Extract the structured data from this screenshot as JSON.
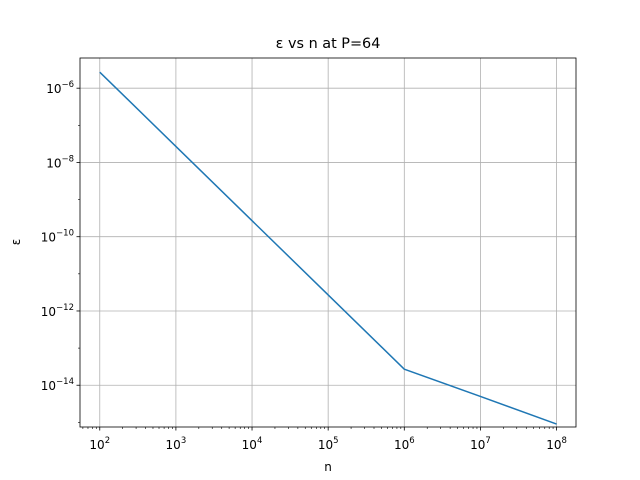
{
  "chart_data": {
    "type": "line",
    "title": "ε vs n at P=64",
    "xlabel": "n",
    "ylabel": "ε",
    "xscale": "log",
    "yscale": "log",
    "xlim": [
      55,
      180000000
    ],
    "ylim": [
      7.5e-16,
      6.5e-06
    ],
    "grid": true,
    "legend": "none",
    "x_ticks": [
      {
        "value": 100,
        "base": "10",
        "exp": "2"
      },
      {
        "value": 1000,
        "base": "10",
        "exp": "3"
      },
      {
        "value": 10000,
        "base": "10",
        "exp": "4"
      },
      {
        "value": 100000,
        "base": "10",
        "exp": "5"
      },
      {
        "value": 1000000,
        "base": "10",
        "exp": "6"
      },
      {
        "value": 10000000,
        "base": "10",
        "exp": "7"
      },
      {
        "value": 100000000,
        "base": "10",
        "exp": "8"
      }
    ],
    "y_ticks": [
      {
        "value": 1e-14,
        "base": "10",
        "exp": "−14"
      },
      {
        "value": 1e-12,
        "base": "10",
        "exp": "−12"
      },
      {
        "value": 1e-10,
        "base": "10",
        "exp": "−10"
      },
      {
        "value": 1e-08,
        "base": "10",
        "exp": "−8"
      },
      {
        "value": 1e-06,
        "base": "10",
        "exp": "−6"
      }
    ],
    "series": [
      {
        "color": "#1f77b4",
        "x": [
          100,
          1000,
          10000,
          100000,
          1000000,
          10000000,
          100000000
        ],
        "y": [
          2.7e-06,
          2.7e-08,
          2.7e-10,
          2.7e-12,
          2.7e-14,
          5e-15,
          9e-16
        ]
      }
    ]
  }
}
